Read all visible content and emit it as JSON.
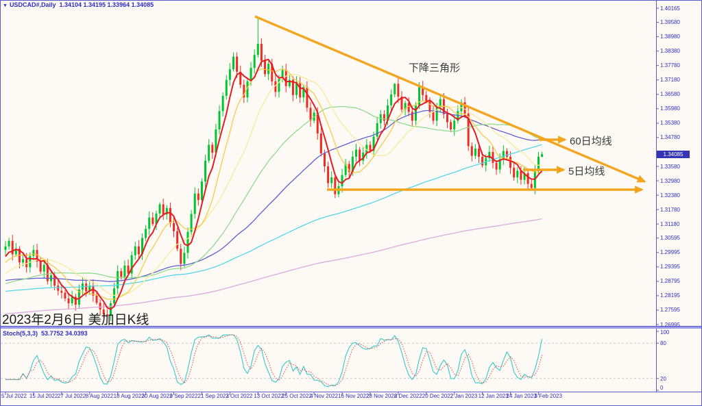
{
  "header": {
    "dropdown_icon": "▼",
    "symbol": "USDCAD#,Daily",
    "ohlc": "1.34104 1.34195 1.33964 1.34085"
  },
  "annotations": {
    "triangle": "下降三角形",
    "ma60": "60日均线",
    "ma5": "5日均线",
    "caption": "2023年2月6日 美加日K线"
  },
  "price_axis": {
    "labels": [
      "1.40165",
      "1.39580",
      "1.38980",
      "1.38380",
      "1.37780",
      "1.37180",
      "1.36580",
      "1.35980",
      "1.35380",
      "1.34780",
      "1.33580",
      "1.32980",
      "1.32380",
      "1.31780",
      "1.31180",
      "1.30595",
      "1.29995",
      "1.29395",
      "1.28795",
      "1.28195",
      "1.27595",
      "1.26995"
    ],
    "current_price": "1.34085"
  },
  "indicator": {
    "label": "Stoch(5,3,3)",
    "values": "53.7752 34.0393",
    "axis_labels": [
      "100",
      "80",
      "20",
      "0"
    ],
    "levels": [
      80,
      20
    ]
  },
  "colors": {
    "background": "#fdf9f4",
    "bull": "#00c52e",
    "bear": "#ef2c24",
    "frame": "#5b5bc8",
    "axis_text": "#2d2dc4",
    "trend": "#f3a51d",
    "level_dash": "#c8c8c8",
    "stoch_k": "#35c9c9",
    "stoch_d": "#e84545",
    "price_tag_bg": "#3434b5"
  },
  "chart_data": {
    "type": "candlestick",
    "symbol": "USDCAD#",
    "timeframe": "Daily",
    "title": "USDCAD daily candles with MA5/10/20/40/60/120/250, descending triangle drawing, Stochastic(5,3,3) sub-window",
    "x_labels": [
      "5 Jul 2022",
      "15 Jul 2022",
      "27 Jul 2022",
      "8 Aug 2022",
      "18 Aug 2022",
      "30 Aug 2022",
      "9 Sep 2022",
      "21 Sep 2022",
      "3 Oct 2022",
      "13 Oct 2022",
      "25 Oct 2022",
      "4 Nov 2022",
      "16 Nov 2022",
      "28 Nov 2022",
      "8 Dec 2022",
      "20 Dec 2022",
      "2 Jan 2023",
      "12 Jan 2023",
      "24 Jan 2023",
      "3 Feb 2023"
    ],
    "bars_per_x_label": 8,
    "y_range": [
      1.26995,
      1.40165
    ],
    "first_open": 1.301,
    "closes": [
      1.3025,
      1.3048,
      1.2992,
      1.3015,
      1.2958,
      1.2972,
      1.2938,
      1.2985,
      1.301,
      1.2962,
      1.292,
      1.2948,
      1.288,
      1.2905,
      1.2862,
      1.284,
      1.2832,
      1.2808,
      1.2788,
      1.2815,
      1.2782,
      1.2845,
      1.287,
      1.2838,
      1.2862,
      1.282,
      1.279,
      1.2762,
      1.2742,
      1.2735,
      1.2788,
      1.285,
      1.2922,
      1.2898,
      1.2945,
      1.2912,
      1.2988,
      1.3025,
      1.2992,
      1.306,
      1.3098,
      1.3145,
      1.3118,
      1.3162,
      1.32,
      1.3158,
      1.3185,
      1.3122,
      1.3088,
      1.3015,
      1.2952,
      1.2998,
      1.3085,
      1.316,
      1.3245,
      1.3218,
      1.3295,
      1.3382,
      1.3448,
      1.3415,
      1.3512,
      1.3588,
      1.3652,
      1.3718,
      1.3762,
      1.3815,
      1.3752,
      1.3698,
      1.3645,
      1.3712,
      1.3768,
      1.3822,
      1.3868,
      1.3798,
      1.3742,
      1.3785,
      1.3712,
      1.3668,
      1.3722,
      1.3759,
      1.3692,
      1.3718,
      1.3655,
      1.3708,
      1.3645,
      1.3688,
      1.3602,
      1.3548,
      1.3582,
      1.3495,
      1.3412,
      1.3358,
      1.3288,
      1.3312,
      1.3242,
      1.3275,
      1.3322,
      1.3368,
      1.3335,
      1.3398,
      1.3428,
      1.3382,
      1.3415,
      1.3448,
      1.3422,
      1.3482,
      1.3538,
      1.3575,
      1.3548,
      1.3612,
      1.3658,
      1.3702,
      1.3648,
      1.3595,
      1.3622,
      1.3585,
      1.3548,
      1.3612,
      1.3688,
      1.3655,
      1.3628,
      1.3585,
      1.3548,
      1.3602,
      1.3638,
      1.3575,
      1.3542,
      1.3512,
      1.3548,
      1.3588,
      1.3625,
      1.3578,
      1.3442,
      1.3402,
      1.3432,
      1.3398,
      1.3362,
      1.3392,
      1.3418,
      1.3372,
      1.3345,
      1.3388,
      1.3422,
      1.3398,
      1.3352,
      1.3312,
      1.334,
      1.3302,
      1.333,
      1.3285,
      1.3268,
      1.3338,
      1.3398,
      1.34085
    ],
    "key_candles": {
      "29": {
        "low": 1.2728
      },
      "44": {
        "high": 1.3208
      },
      "72": {
        "high": 1.3977
      },
      "94": {
        "low": 1.3226
      },
      "111": {
        "high": 1.3705
      },
      "150": {
        "low": 1.3262
      },
      "152": {
        "high": 1.3418
      },
      "153": {
        "high": 1.34195,
        "low": 1.33964
      }
    },
    "current_bar": {
      "open": "1.34104",
      "high": "1.34195",
      "low": "1.33964",
      "close": "1.34085"
    },
    "moving_averages": [
      {
        "name": "MA5",
        "period": 5,
        "color": "#e31b23",
        "width": 2
      },
      {
        "name": "MA10",
        "period": 10,
        "color": "#f5c93a",
        "width": 1.2
      },
      {
        "name": "MA20",
        "period": 20,
        "color": "#fae991",
        "width": 1.2
      },
      {
        "name": "MA40",
        "period": 40,
        "color": "#86d989",
        "width": 1.2
      },
      {
        "name": "MA60",
        "period": 60,
        "color": "#5f5fd0",
        "width": 1.3
      },
      {
        "name": "MA120",
        "period": 120,
        "color": "#52d7e8",
        "width": 1.3
      },
      {
        "name": "MA250",
        "period": 250,
        "color": "#dcaade",
        "width": 1.3
      }
    ],
    "drawings": [
      {
        "name": "descending-triangle-upper-line",
        "from_price": 1.3977,
        "to_price": 1.327,
        "arrow": true
      },
      {
        "name": "horizontal-support-line",
        "price": 1.3266,
        "arrow": true
      },
      {
        "name": "ma60-pointer-arrow"
      },
      {
        "name": "ma5-pointer-arrow"
      }
    ],
    "stochastic": {
      "k_period": 5,
      "slowing": 3,
      "d_period": 3,
      "current_k": 53.7752,
      "current_d": 34.0393
    }
  }
}
